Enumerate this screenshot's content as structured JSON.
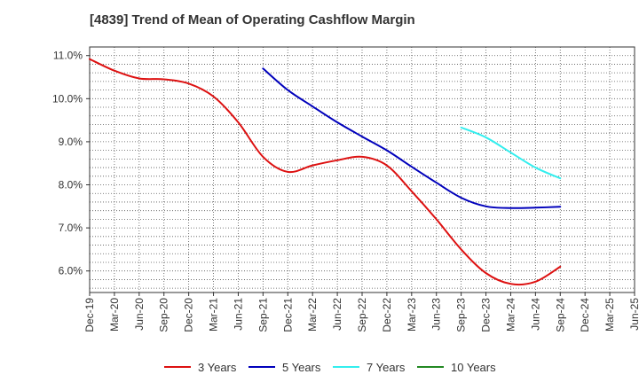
{
  "chart_data": {
    "type": "line",
    "title": "[4839]  Trend of Mean of Operating Cashflow Margin",
    "xlabel": "",
    "ylabel": "",
    "ylim": [
      5.5,
      11.2
    ],
    "yticks": [
      6.0,
      7.0,
      8.0,
      9.0,
      10.0,
      11.0
    ],
    "ytick_labels": [
      "6.0%",
      "7.0%",
      "8.0%",
      "9.0%",
      "10.0%",
      "11.0%"
    ],
    "categories": [
      "Dec-19",
      "Mar-20",
      "Jun-20",
      "Sep-20",
      "Dec-20",
      "Mar-21",
      "Jun-21",
      "Sep-21",
      "Dec-21",
      "Mar-22",
      "Jun-22",
      "Sep-22",
      "Dec-22",
      "Mar-23",
      "Jun-23",
      "Sep-23",
      "Dec-23",
      "Mar-24",
      "Jun-24",
      "Sep-24",
      "Dec-24",
      "Mar-25"
    ],
    "x_tick_labels": [
      "Dec-19",
      "Mar-20",
      "Jun-20",
      "Sep-20",
      "Dec-20",
      "Mar-21",
      "Jun-21",
      "Sep-21",
      "Dec-21",
      "Mar-22",
      "Jun-22",
      "Sep-22",
      "Dec-22",
      "Mar-23",
      "Jun-23",
      "Sep-23",
      "Dec-23",
      "Mar-24",
      "Jun-24",
      "Sep-24",
      "Dec-24",
      "Mar-25",
      "Jun-25"
    ],
    "grid": true,
    "legend_position": "bottom",
    "series": [
      {
        "name": "3 Years",
        "color": "#dd1111",
        "values": [
          10.92,
          10.65,
          10.47,
          10.45,
          10.35,
          10.05,
          9.45,
          8.65,
          8.3,
          8.45,
          8.57,
          8.65,
          8.45,
          7.85,
          7.2,
          6.5,
          5.95,
          5.7,
          5.75,
          6.1,
          null,
          null
        ]
      },
      {
        "name": "5 Years",
        "color": "#0000bb",
        "values": [
          null,
          null,
          null,
          null,
          null,
          null,
          null,
          10.7,
          10.2,
          9.82,
          9.45,
          9.12,
          8.8,
          8.42,
          8.05,
          7.7,
          7.5,
          7.46,
          7.47,
          7.49,
          null,
          null
        ]
      },
      {
        "name": "7 Years",
        "color": "#33eeee",
        "values": [
          null,
          null,
          null,
          null,
          null,
          null,
          null,
          null,
          null,
          null,
          null,
          null,
          null,
          null,
          null,
          9.33,
          9.1,
          8.75,
          8.4,
          8.15,
          null,
          null
        ]
      },
      {
        "name": "10 Years",
        "color": "#228822",
        "values": [
          null,
          null,
          null,
          null,
          null,
          null,
          null,
          null,
          null,
          null,
          null,
          null,
          null,
          null,
          null,
          null,
          null,
          null,
          null,
          null,
          null,
          null
        ]
      }
    ]
  }
}
